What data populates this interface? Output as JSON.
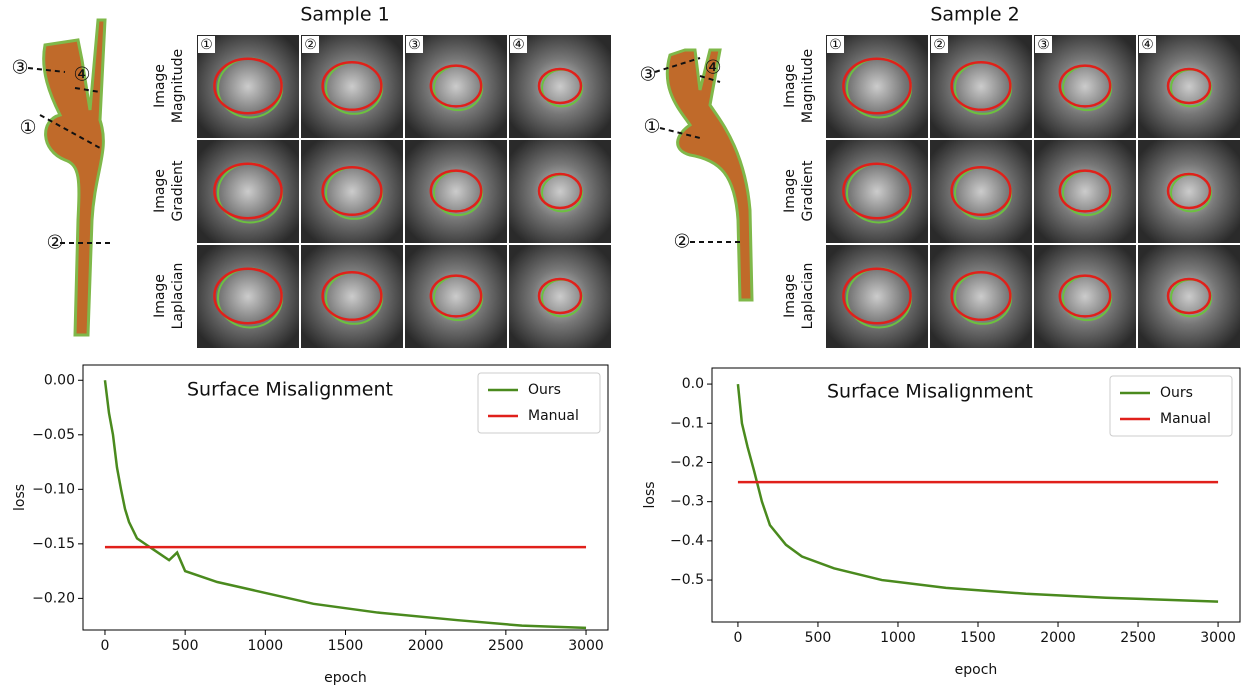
{
  "samples": [
    {
      "title": "Sample 1",
      "row_labels": [
        [
          "Image",
          "Magnitude"
        ],
        [
          "Image",
          "Gradient"
        ],
        [
          "Image",
          "Laplacian"
        ]
      ],
      "panels": [
        "①",
        "②",
        "③",
        "④"
      ],
      "callouts": [
        "①",
        "②",
        "③",
        "④"
      ]
    },
    {
      "title": "Sample 2",
      "row_labels": [
        [
          "Image",
          "Magnitude"
        ],
        [
          "Image",
          "Gradient"
        ],
        [
          "Image",
          "Laplacian"
        ]
      ],
      "panels": [
        "①",
        "②",
        "③",
        "④"
      ],
      "callouts": [
        "①",
        "②",
        "③",
        "④"
      ]
    }
  ],
  "chart_data": [
    {
      "type": "line",
      "title": "Surface Misalignment",
      "x_label": "epoch",
      "y_label": "loss",
      "x": [
        0,
        25,
        50,
        75,
        100,
        125,
        150,
        200,
        250,
        300,
        400,
        450,
        500,
        700,
        1000,
        1300,
        1700,
        2200,
        2600,
        3000
      ],
      "series": [
        {
          "name": "Ours",
          "color": "#4a8a1e",
          "values": [
            0,
            -0.03,
            -0.05,
            -0.08,
            -0.1,
            -0.118,
            -0.13,
            -0.145,
            -0.15,
            -0.155,
            -0.165,
            -0.158,
            -0.175,
            -0.185,
            -0.195,
            -0.205,
            -0.213,
            -0.22,
            -0.225,
            -0.227
          ]
        },
        {
          "name": "Manual",
          "color": "#e0201b",
          "values": [
            -0.153,
            -0.153,
            -0.153,
            -0.153,
            -0.153,
            -0.153,
            -0.153,
            -0.153,
            -0.153,
            -0.153,
            -0.153,
            -0.153,
            -0.153,
            -0.153,
            -0.153,
            -0.153,
            -0.153,
            -0.153,
            -0.153,
            -0.153
          ]
        }
      ],
      "xlim": [
        -137,
        3137
      ],
      "ylim": [
        -0.229,
        0.014
      ],
      "xticks": [
        0,
        500,
        1000,
        1500,
        2000,
        2500,
        3000
      ],
      "yticks": [
        {
          "value": 0,
          "label": "0.00"
        },
        {
          "value": -0.05,
          "label": "−0.05"
        },
        {
          "value": -0.1,
          "label": "−0.10"
        },
        {
          "value": -0.15,
          "label": "−0.15"
        },
        {
          "value": -0.2,
          "label": "−0.20"
        }
      ],
      "legend": "upper right"
    },
    {
      "type": "line",
      "title": "Surface Misalignment",
      "x_label": "epoch",
      "y_label": "loss",
      "x": [
        0,
        25,
        60,
        100,
        125,
        150,
        200,
        300,
        400,
        600,
        900,
        1300,
        1800,
        2300,
        3000
      ],
      "series": [
        {
          "name": "Ours",
          "color": "#4a8a1e",
          "values": [
            0,
            -0.1,
            -0.16,
            -0.22,
            -0.26,
            -0.3,
            -0.36,
            -0.41,
            -0.44,
            -0.47,
            -0.5,
            -0.52,
            -0.535,
            -0.545,
            -0.555
          ]
        },
        {
          "name": "Manual",
          "color": "#e0201b",
          "values": [
            -0.25,
            -0.25,
            -0.25,
            -0.25,
            -0.25,
            -0.25,
            -0.25,
            -0.25,
            -0.25,
            -0.25,
            -0.25,
            -0.25,
            -0.25,
            -0.25,
            -0.25
          ]
        }
      ],
      "xlim": [
        -162,
        3137
      ],
      "ylim": [
        -0.607,
        0.041
      ],
      "xticks": [
        0,
        500,
        1000,
        1500,
        2000,
        2500,
        3000
      ],
      "yticks": [
        {
          "value": 0,
          "label": "0.0"
        },
        {
          "value": -0.1,
          "label": "−0.1"
        },
        {
          "value": -0.2,
          "label": "−0.2"
        },
        {
          "value": -0.3,
          "label": "−0.3"
        },
        {
          "value": -0.4,
          "label": "−0.4"
        },
        {
          "value": -0.5,
          "label": "−0.5"
        }
      ],
      "legend": "upper right"
    }
  ]
}
